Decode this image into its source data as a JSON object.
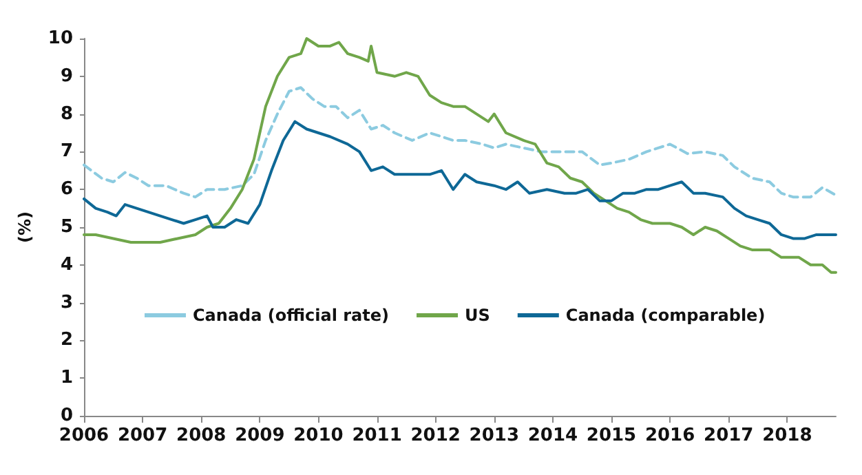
{
  "chart_data": {
    "type": "line",
    "ylabel": "(%)",
    "xlim": [
      2006,
      2018.83
    ],
    "xticks": [
      2006,
      2007,
      2008,
      2009,
      2010,
      2011,
      2012,
      2013,
      2014,
      2015,
      2016,
      2017,
      2018
    ],
    "ylim": [
      0,
      10
    ],
    "yticks": [
      0,
      1,
      2,
      3,
      4,
      5,
      6,
      7,
      8,
      9,
      10
    ],
    "grid": false,
    "legend": "bottom",
    "marker": "none",
    "series": [
      {
        "name": "Canada (official rate)",
        "color": "#8ccbe0",
        "line_style": "dashed",
        "x": [
          2006.0,
          2006.3,
          2006.5,
          2006.7,
          2006.9,
          2007.1,
          2007.4,
          2007.7,
          2007.9,
          2008.1,
          2008.4,
          2008.7,
          2008.9,
          2009.1,
          2009.3,
          2009.5,
          2009.7,
          2009.9,
          2010.1,
          2010.3,
          2010.5,
          2010.7,
          2010.9,
          2011.1,
          2011.3,
          2011.6,
          2011.9,
          2012.1,
          2012.3,
          2012.5,
          2012.8,
          2013.0,
          2013.2,
          2013.5,
          2013.8,
          2014.0,
          2014.3,
          2014.5,
          2014.8,
          2015.0,
          2015.3,
          2015.6,
          2015.8,
          2016.0,
          2016.3,
          2016.6,
          2016.9,
          2017.1,
          2017.4,
          2017.7,
          2017.9,
          2018.1,
          2018.4,
          2018.6,
          2018.83
        ],
        "values": [
          6.65,
          6.3,
          6.2,
          6.45,
          6.3,
          6.1,
          6.1,
          5.9,
          5.8,
          6.0,
          6.0,
          6.1,
          6.4,
          7.3,
          8.0,
          8.6,
          8.7,
          8.4,
          8.2,
          8.2,
          7.9,
          8.1,
          7.6,
          7.7,
          7.5,
          7.3,
          7.5,
          7.4,
          7.3,
          7.3,
          7.2,
          7.1,
          7.2,
          7.1,
          7.0,
          7.0,
          7.0,
          7.0,
          6.65,
          6.7,
          6.8,
          7.0,
          7.1,
          7.2,
          6.95,
          7.0,
          6.9,
          6.6,
          6.3,
          6.2,
          5.9,
          5.8,
          5.8,
          6.05,
          5.85
        ]
      },
      {
        "name": "US",
        "color": "#70a64a",
        "line_style": "solid",
        "x": [
          2006.0,
          2006.2,
          2006.5,
          2006.8,
          2007.0,
          2007.3,
          2007.6,
          2007.9,
          2008.1,
          2008.3,
          2008.5,
          2008.7,
          2008.9,
          2009.1,
          2009.3,
          2009.5,
          2009.7,
          2009.8,
          2010.0,
          2010.2,
          2010.35,
          2010.5,
          2010.7,
          2010.85,
          2010.9,
          2011.0,
          2011.3,
          2011.5,
          2011.7,
          2011.9,
          2012.1,
          2012.3,
          2012.5,
          2012.7,
          2012.9,
          2013.0,
          2013.2,
          2013.5,
          2013.7,
          2013.9,
          2014.1,
          2014.3,
          2014.5,
          2014.7,
          2014.9,
          2015.1,
          2015.3,
          2015.5,
          2015.7,
          2016.0,
          2016.2,
          2016.4,
          2016.6,
          2016.8,
          2017.0,
          2017.2,
          2017.4,
          2017.7,
          2017.9,
          2018.2,
          2018.4,
          2018.6,
          2018.75,
          2018.83
        ],
        "values": [
          4.8,
          4.8,
          4.7,
          4.6,
          4.6,
          4.6,
          4.7,
          4.8,
          5.0,
          5.1,
          5.5,
          6.0,
          6.8,
          8.2,
          9.0,
          9.5,
          9.6,
          10.0,
          9.8,
          9.8,
          9.9,
          9.6,
          9.5,
          9.4,
          9.8,
          9.1,
          9.0,
          9.1,
          9.0,
          8.5,
          8.3,
          8.2,
          8.2,
          8.0,
          7.8,
          8.0,
          7.5,
          7.3,
          7.2,
          6.7,
          6.6,
          6.3,
          6.2,
          5.9,
          5.7,
          5.5,
          5.4,
          5.2,
          5.1,
          5.1,
          5.0,
          4.8,
          5.0,
          4.9,
          4.7,
          4.5,
          4.4,
          4.4,
          4.2,
          4.2,
          4.0,
          4.0,
          3.8,
          3.8
        ]
      },
      {
        "name": "Canada (comparable)",
        "color": "#0e6896",
        "line_style": "solid",
        "x": [
          2006.0,
          2006.2,
          2006.4,
          2006.55,
          2006.7,
          2006.9,
          2007.1,
          2007.3,
          2007.5,
          2007.7,
          2007.9,
          2008.1,
          2008.2,
          2008.4,
          2008.6,
          2008.8,
          2009.0,
          2009.2,
          2009.4,
          2009.6,
          2009.8,
          2010.0,
          2010.2,
          2010.5,
          2010.7,
          2010.9,
          2011.1,
          2011.3,
          2011.6,
          2011.9,
          2012.1,
          2012.3,
          2012.5,
          2012.7,
          2013.0,
          2013.2,
          2013.4,
          2013.6,
          2013.9,
          2014.2,
          2014.4,
          2014.6,
          2014.8,
          2015.0,
          2015.2,
          2015.4,
          2015.6,
          2015.8,
          2016.0,
          2016.2,
          2016.4,
          2016.6,
          2016.9,
          2017.1,
          2017.3,
          2017.5,
          2017.7,
          2017.9,
          2018.1,
          2018.3,
          2018.5,
          2018.83
        ],
        "values": [
          5.75,
          5.5,
          5.4,
          5.3,
          5.6,
          5.5,
          5.4,
          5.3,
          5.2,
          5.1,
          5.2,
          5.3,
          5.0,
          5.0,
          5.2,
          5.1,
          5.6,
          6.5,
          7.3,
          7.8,
          7.6,
          7.5,
          7.4,
          7.2,
          7.0,
          6.5,
          6.6,
          6.4,
          6.4,
          6.4,
          6.5,
          6.0,
          6.4,
          6.2,
          6.1,
          6.0,
          6.2,
          5.9,
          6.0,
          5.9,
          5.9,
          6.0,
          5.7,
          5.7,
          5.9,
          5.9,
          6.0,
          6.0,
          6.1,
          6.2,
          5.9,
          5.9,
          5.8,
          5.5,
          5.3,
          5.2,
          5.1,
          4.8,
          4.7,
          4.7,
          4.8,
          4.8
        ]
      }
    ]
  }
}
